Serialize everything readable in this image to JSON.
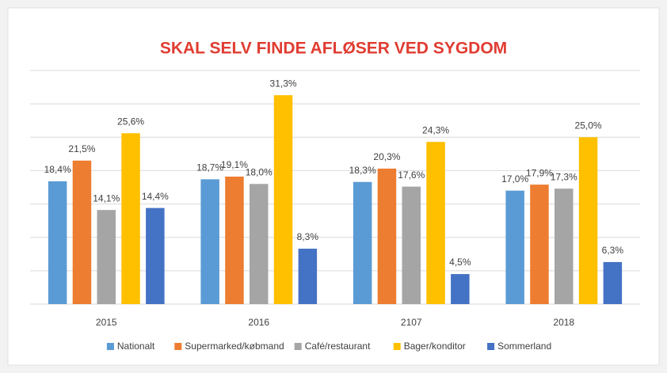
{
  "chart_data": {
    "type": "bar",
    "title": "SKAL SELV FINDE AFLØSER VED SYGDOM",
    "categories": [
      "2015",
      "2016",
      "2107",
      "2018"
    ],
    "series": [
      {
        "name": "Nationalt",
        "color": "#5b9bd5",
        "values": [
          18.4,
          18.7,
          18.3,
          17.0
        ],
        "value_labels": [
          "18,4%",
          "18,7%",
          "18,3%",
          "17,0%"
        ]
      },
      {
        "name": "Supermarked/købmand",
        "color": "#ed7d31",
        "values": [
          21.5,
          19.1,
          20.3,
          17.9
        ],
        "value_labels": [
          "21,5%",
          "19,1%",
          "20,3%",
          "17,9%"
        ]
      },
      {
        "name": "Café/restaurant",
        "color": "#a5a5a5",
        "values": [
          14.1,
          18.0,
          17.6,
          17.3
        ],
        "value_labels": [
          "14,1%",
          "18,0%",
          "17,6%",
          "17,3%"
        ]
      },
      {
        "name": "Bager/konditor",
        "color": "#ffc000",
        "values": [
          25.6,
          31.3,
          24.3,
          25.0
        ],
        "value_labels": [
          "25,6%",
          "31,3%",
          "24,3%",
          "25,0%"
        ]
      },
      {
        "name": "Sommerland",
        "color": "#4472c4",
        "values": [
          14.4,
          8.3,
          4.5,
          6.3
        ],
        "value_labels": [
          "14,4%",
          "8,3%",
          "4,5%",
          "6,3%"
        ]
      }
    ],
    "ylim": [
      0,
      35
    ],
    "yticks": [
      0,
      5,
      10,
      15,
      20,
      25,
      30,
      35
    ],
    "grid": true,
    "legend": "bottom"
  }
}
